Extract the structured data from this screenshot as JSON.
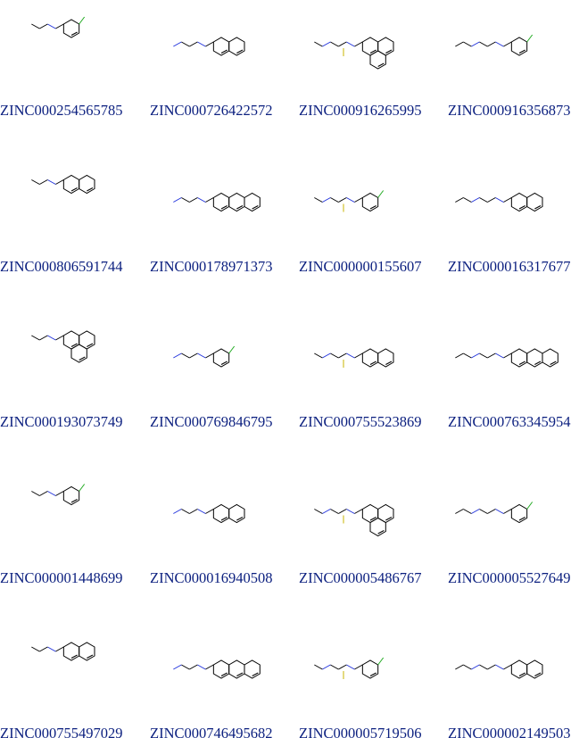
{
  "grid": [
    "ZINC000254565785",
    "ZINC000726422572",
    "ZINC000916265995",
    "ZINC000916356873",
    "ZINC000806591744",
    "ZINC000178971373",
    "ZINC000000155607",
    "ZINC000016317677",
    "ZINC000193073749",
    "ZINC000769846795",
    "ZINC000755523869",
    "ZINC000763345954",
    "ZINC000001448699",
    "ZINC000016940508",
    "ZINC000005486767",
    "ZINC000005527649",
    "ZINC000755497029",
    "ZINC000746495682",
    "ZINC000005719506",
    "ZINC000002149503"
  ]
}
